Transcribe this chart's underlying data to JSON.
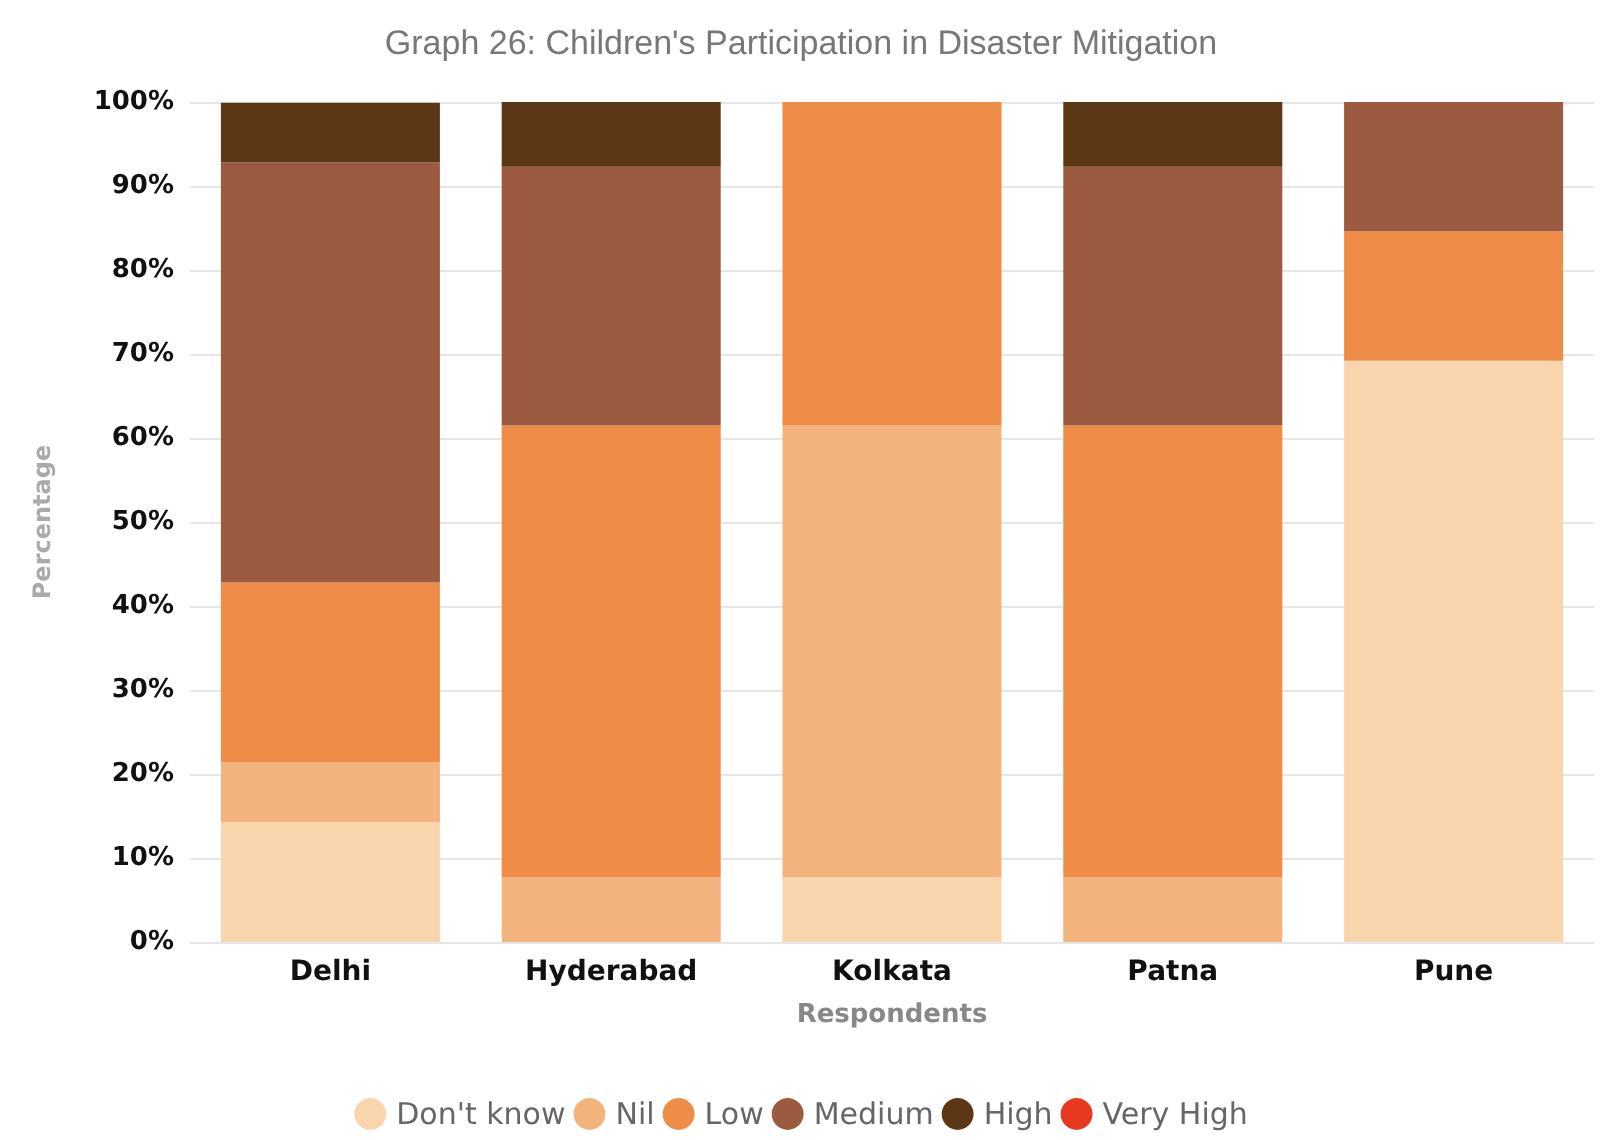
{
  "chart_data": {
    "type": "bar",
    "title": "Graph 26: Children's Participation in Disaster Mitigation",
    "xlabel": "Respondents",
    "ylabel": "Percentage",
    "categories": [
      "Delhi",
      "Hyderabad",
      "Kolkata",
      "Patna",
      "Pune"
    ],
    "stacked": true,
    "ylim": [
      0,
      100
    ],
    "yticks": [
      {
        "value": 0,
        "label": "0%"
      },
      {
        "value": 10,
        "label": "10%"
      },
      {
        "value": 20,
        "label": "20%"
      },
      {
        "value": 30,
        "label": "30%"
      },
      {
        "value": 40,
        "label": "40%"
      },
      {
        "value": 50,
        "label": "50%"
      },
      {
        "value": 60,
        "label": "60%"
      },
      {
        "value": 70,
        "label": "70%"
      },
      {
        "value": 80,
        "label": "80%"
      },
      {
        "value": 90,
        "label": "90%"
      },
      {
        "value": 100,
        "label": "100%"
      }
    ],
    "grid": "y",
    "legend": "bottom",
    "series": [
      {
        "name": "Don't know",
        "color": "#f9d5ad",
        "values": [
          14.3,
          0,
          7.7,
          0,
          69.2
        ]
      },
      {
        "name": "Nil",
        "color": "#f2b37c",
        "values": [
          7.1,
          7.7,
          53.8,
          7.7,
          0
        ]
      },
      {
        "name": "Low",
        "color": "#ef8c48",
        "values": [
          21.4,
          53.8,
          38.5,
          53.8,
          15.4
        ]
      },
      {
        "name": "Medium",
        "color": "#9c5a41",
        "values": [
          50,
          30.8,
          0,
          30.8,
          15.4
        ]
      },
      {
        "name": "High",
        "color": "#5b3716",
        "values": [
          7.1,
          7.7,
          0,
          7.7,
          0
        ]
      },
      {
        "name": "Very High",
        "color": "#e8391f",
        "values": [
          0,
          0,
          0,
          0,
          0
        ]
      }
    ]
  }
}
